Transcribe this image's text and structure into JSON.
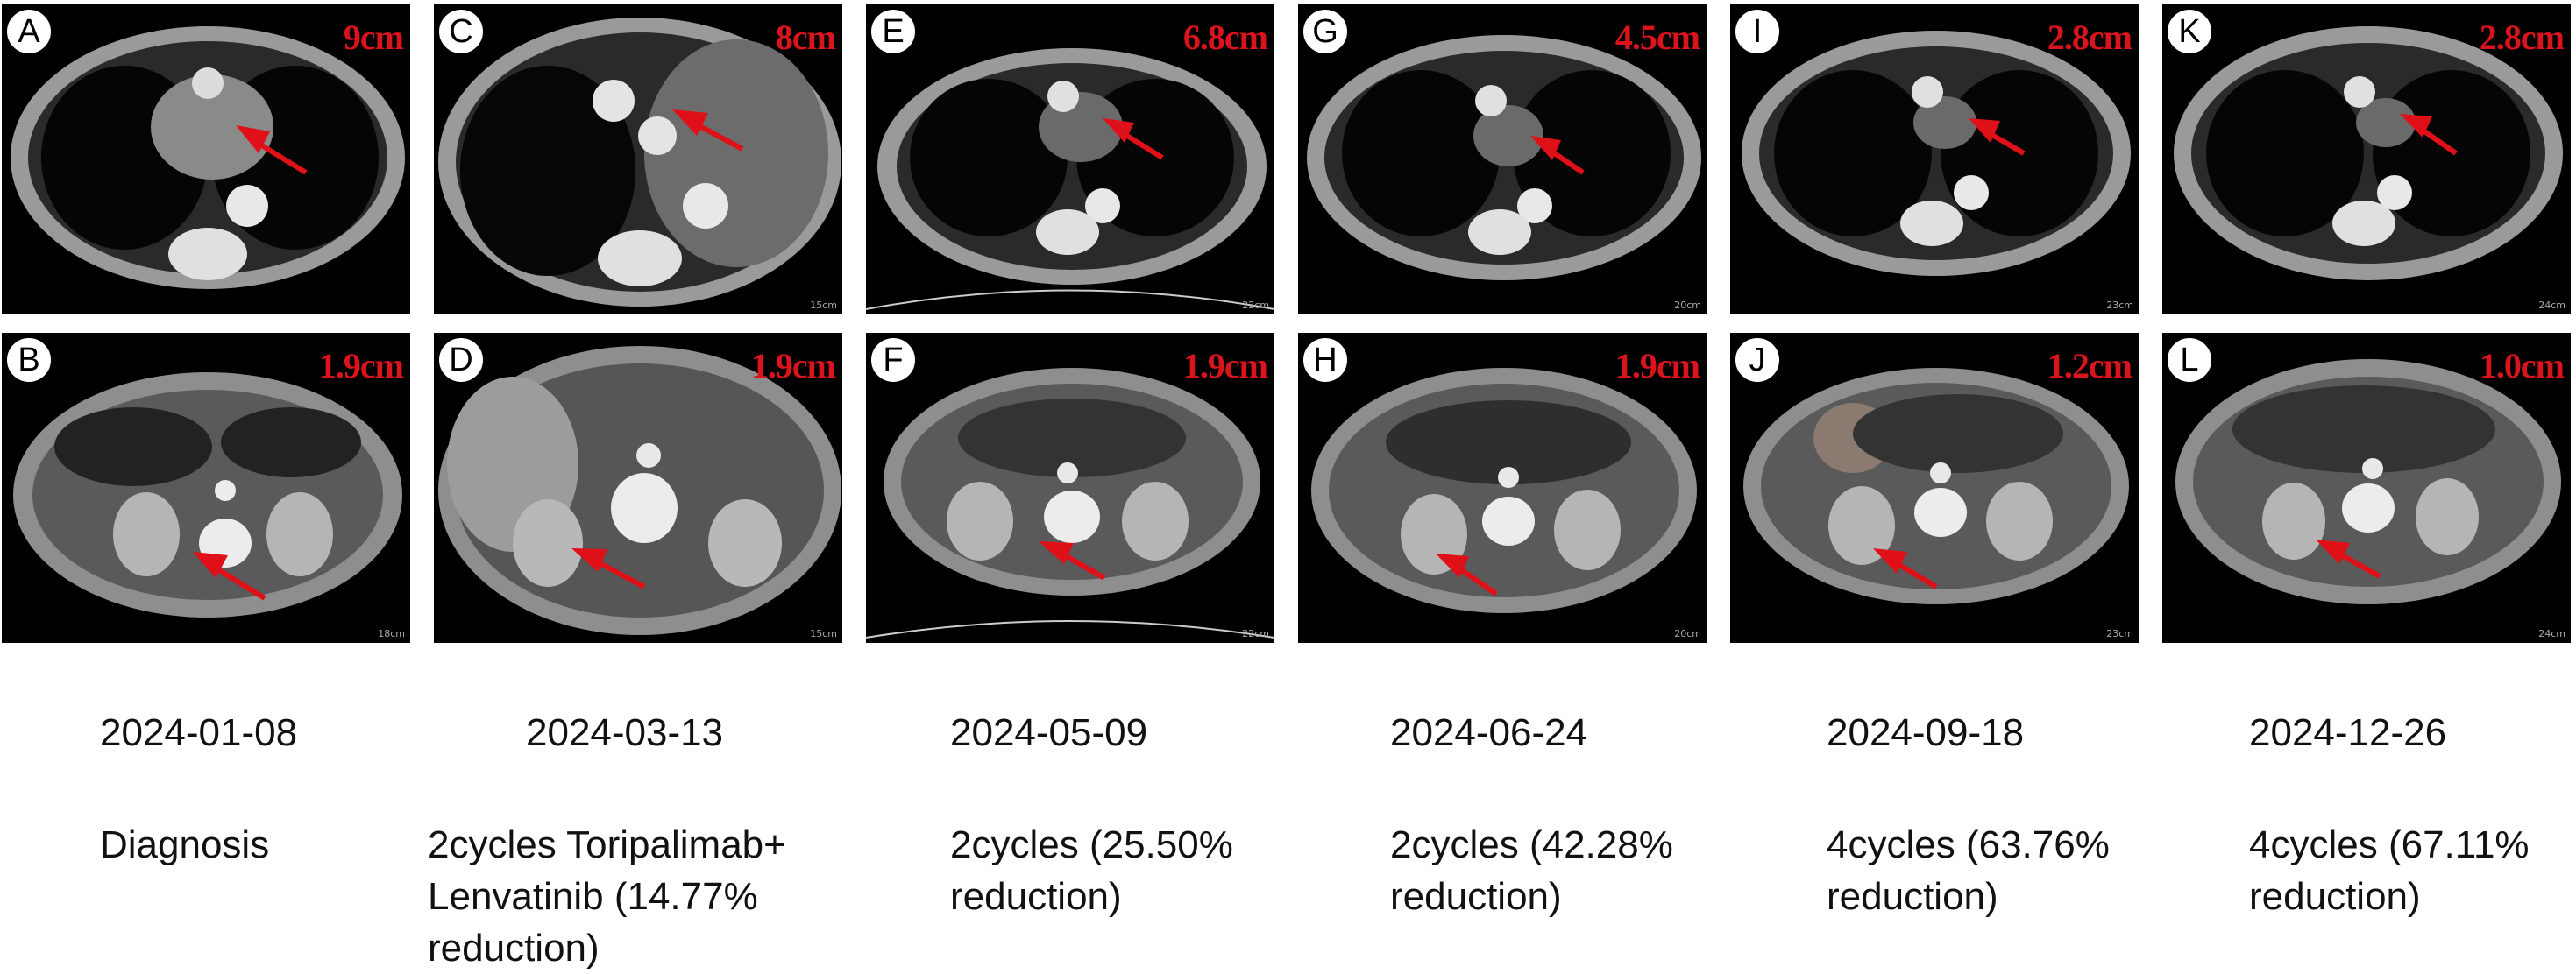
{
  "panels": [
    {
      "label": "A",
      "measurement": "9cm"
    },
    {
      "label": "B",
      "measurement": "1.9cm"
    },
    {
      "label": "C",
      "measurement": "8cm"
    },
    {
      "label": "D",
      "measurement": "1.9cm"
    },
    {
      "label": "E",
      "measurement": "6.8cm"
    },
    {
      "label": "F",
      "measurement": "1.9cm"
    },
    {
      "label": "G",
      "measurement": "4.5cm"
    },
    {
      "label": "H",
      "measurement": "1.9cm"
    },
    {
      "label": "I",
      "measurement": "2.8cm"
    },
    {
      "label": "J",
      "measurement": "1.2cm"
    },
    {
      "label": "K",
      "measurement": "2.8cm"
    },
    {
      "label": "L",
      "measurement": "1.0cm"
    }
  ],
  "scale_labels": [
    "",
    "18cm",
    "15cm",
    "15cm",
    "22cm",
    "22cm",
    "20cm",
    "20cm",
    "23cm",
    "23cm",
    "24cm",
    "24cm"
  ],
  "timeline": [
    {
      "date": "2024-01-08",
      "note": "Diagnosis"
    },
    {
      "date": "2024-03-13",
      "note": "2cycles Toripalimab+\nLenvatinib (14.77%\nreduction)"
    },
    {
      "date": "2024-05-09",
      "note": "2cycles (25.50%\n reduction)"
    },
    {
      "date": "2024-06-24",
      "note": "2cycles (42.28%\n reduction)"
    },
    {
      "date": "2024-09-18",
      "note": "4cycles (63.76%\n reduction)"
    },
    {
      "date": "2024-12-26",
      "note": "4cycles (67.11%\n reduction)"
    }
  ],
  "colors": {
    "annotation": "#d9141c",
    "arrow": "#e01018"
  }
}
